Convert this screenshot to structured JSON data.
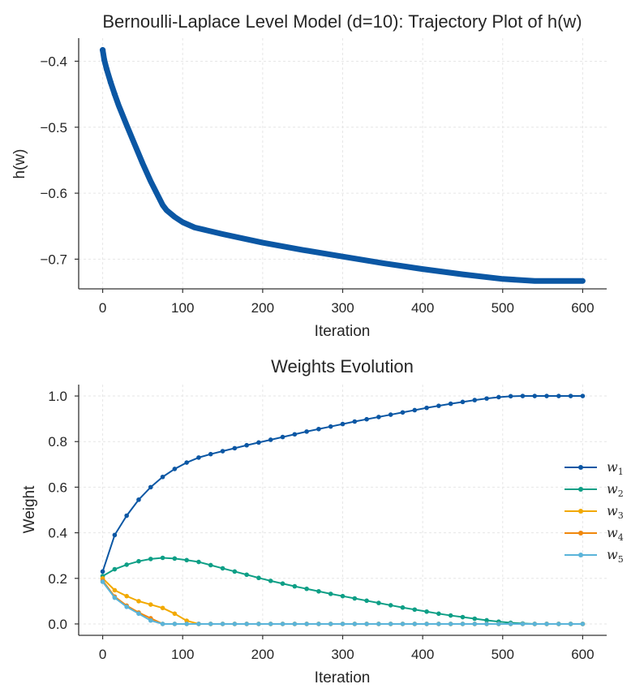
{
  "chart_data": [
    {
      "type": "line",
      "title": "Bernoulli-Laplace Level Model (d=10): Trajectory Plot of h(w)",
      "xlabel": "Iteration",
      "ylabel": "h(w)",
      "xlim": [
        -30,
        630
      ],
      "ylim": [
        -0.745,
        -0.365
      ],
      "xticks": [
        0,
        100,
        200,
        300,
        400,
        500,
        600
      ],
      "yticks": [
        -0.4,
        -0.5,
        -0.6,
        -0.7
      ],
      "ytick_labels": [
        "−0.4",
        "−0.5",
        "−0.6",
        "−0.7"
      ],
      "color": "#0b57a4",
      "series": [
        {
          "name": "h(w)",
          "x": [
            0,
            2,
            5,
            10,
            15,
            20,
            30,
            40,
            50,
            60,
            75,
            80,
            90,
            100,
            115,
            150,
            200,
            250,
            300,
            350,
            400,
            450,
            500,
            540,
            550,
            600
          ],
          "y": [
            -0.383,
            -0.398,
            -0.412,
            -0.432,
            -0.45,
            -0.467,
            -0.497,
            -0.526,
            -0.555,
            -0.582,
            -0.618,
            -0.626,
            -0.636,
            -0.644,
            -0.652,
            -0.662,
            -0.675,
            -0.686,
            -0.696,
            -0.706,
            -0.715,
            -0.723,
            -0.73,
            -0.733,
            -0.733,
            -0.733
          ]
        }
      ]
    },
    {
      "type": "line",
      "title": "Weights Evolution",
      "xlabel": "Iteration",
      "ylabel": "Weight",
      "xlim": [
        -30,
        630
      ],
      "ylim": [
        -0.05,
        1.05
      ],
      "xticks": [
        0,
        100,
        200,
        300,
        400,
        500,
        600
      ],
      "yticks": [
        0.0,
        0.2,
        0.4,
        0.6,
        0.8,
        1.0
      ],
      "ytick_labels": [
        "0.0",
        "0.2",
        "0.4",
        "0.6",
        "0.8",
        "1.0"
      ],
      "legend_position": "center-right",
      "series": [
        {
          "name": "w",
          "sub": "1",
          "color": "#0b57a4",
          "x": [
            0,
            15,
            30,
            45,
            60,
            75,
            90,
            105,
            120,
            135,
            150,
            165,
            180,
            195,
            210,
            225,
            240,
            255,
            270,
            285,
            300,
            315,
            330,
            345,
            360,
            375,
            390,
            405,
            420,
            435,
            450,
            465,
            480,
            495,
            510,
            525,
            540,
            555,
            570,
            585,
            600
          ],
          "y": [
            0.23,
            0.39,
            0.475,
            0.545,
            0.6,
            0.645,
            0.68,
            0.708,
            0.73,
            0.745,
            0.758,
            0.771,
            0.784,
            0.796,
            0.808,
            0.82,
            0.832,
            0.844,
            0.855,
            0.866,
            0.877,
            0.888,
            0.898,
            0.908,
            0.918,
            0.928,
            0.938,
            0.948,
            0.957,
            0.966,
            0.974,
            0.982,
            0.989,
            0.995,
            0.999,
            1.0,
            1.0,
            1.0,
            1.0,
            1.0,
            1.0
          ]
        },
        {
          "name": "w",
          "sub": "2",
          "color": "#0e9f86",
          "x": [
            0,
            15,
            30,
            45,
            60,
            75,
            90,
            105,
            120,
            135,
            150,
            165,
            180,
            195,
            210,
            225,
            240,
            255,
            270,
            285,
            300,
            315,
            330,
            345,
            360,
            375,
            390,
            405,
            420,
            435,
            450,
            465,
            480,
            495,
            510,
            525,
            540,
            555,
            570,
            585,
            600
          ],
          "y": [
            0.21,
            0.24,
            0.26,
            0.275,
            0.285,
            0.29,
            0.287,
            0.28,
            0.272,
            0.258,
            0.244,
            0.23,
            0.216,
            0.202,
            0.189,
            0.177,
            0.165,
            0.154,
            0.143,
            0.132,
            0.122,
            0.112,
            0.102,
            0.092,
            0.082,
            0.072,
            0.063,
            0.054,
            0.045,
            0.037,
            0.03,
            0.023,
            0.016,
            0.01,
            0.005,
            0.002,
            0.0,
            0.0,
            0.0,
            0.0,
            0.0
          ]
        },
        {
          "name": "w",
          "sub": "3",
          "color": "#f2a900",
          "x": [
            0,
            15,
            30,
            45,
            60,
            75,
            90,
            105,
            120,
            135,
            150,
            165,
            180,
            195,
            210,
            225,
            240,
            255,
            270,
            285,
            300,
            315,
            330,
            345,
            360,
            375,
            390,
            405,
            420,
            435,
            450,
            465,
            480,
            495,
            510,
            525,
            540,
            555,
            570,
            585,
            600
          ],
          "y": [
            0.2,
            0.148,
            0.122,
            0.1,
            0.085,
            0.07,
            0.045,
            0.014,
            0.0,
            0.0,
            0.0,
            0.0,
            0.0,
            0.0,
            0.0,
            0.0,
            0.0,
            0.0,
            0.0,
            0.0,
            0.0,
            0.0,
            0.0,
            0.0,
            0.0,
            0.0,
            0.0,
            0.0,
            0.0,
            0.0,
            0.0,
            0.0,
            0.0,
            0.0,
            0.0,
            0.0,
            0.0,
            0.0,
            0.0,
            0.0,
            0.0
          ]
        },
        {
          "name": "w",
          "sub": "4",
          "color": "#f0870c",
          "x": [
            0,
            15,
            30,
            45,
            60,
            75,
            90,
            105,
            120,
            135,
            150,
            165,
            180,
            195,
            210,
            225,
            240,
            255,
            270,
            285,
            300,
            315,
            330,
            345,
            360,
            375,
            390,
            405,
            420,
            435,
            450,
            465,
            480,
            495,
            510,
            525,
            540,
            555,
            570,
            585,
            600
          ],
          "y": [
            0.19,
            0.12,
            0.08,
            0.05,
            0.025,
            0.0,
            0.0,
            0.0,
            0.0,
            0.0,
            0.0,
            0.0,
            0.0,
            0.0,
            0.0,
            0.0,
            0.0,
            0.0,
            0.0,
            0.0,
            0.0,
            0.0,
            0.0,
            0.0,
            0.0,
            0.0,
            0.0,
            0.0,
            0.0,
            0.0,
            0.0,
            0.0,
            0.0,
            0.0,
            0.0,
            0.0,
            0.0,
            0.0,
            0.0,
            0.0,
            0.0
          ]
        },
        {
          "name": "w",
          "sub": "5",
          "color": "#5ab4d9",
          "x": [
            0,
            15,
            30,
            45,
            60,
            75,
            90,
            105,
            120,
            135,
            150,
            165,
            180,
            195,
            210,
            225,
            240,
            255,
            270,
            285,
            300,
            315,
            330,
            345,
            360,
            375,
            390,
            405,
            420,
            435,
            450,
            465,
            480,
            495,
            510,
            525,
            540,
            555,
            570,
            585,
            600
          ],
          "y": [
            0.185,
            0.115,
            0.075,
            0.045,
            0.015,
            0.0,
            0.0,
            0.0,
            0.0,
            0.0,
            0.0,
            0.0,
            0.0,
            0.0,
            0.0,
            0.0,
            0.0,
            0.0,
            0.0,
            0.0,
            0.0,
            0.0,
            0.0,
            0.0,
            0.0,
            0.0,
            0.0,
            0.0,
            0.0,
            0.0,
            0.0,
            0.0,
            0.0,
            0.0,
            0.0,
            0.0,
            0.0,
            0.0,
            0.0,
            0.0,
            0.0
          ]
        }
      ]
    }
  ]
}
